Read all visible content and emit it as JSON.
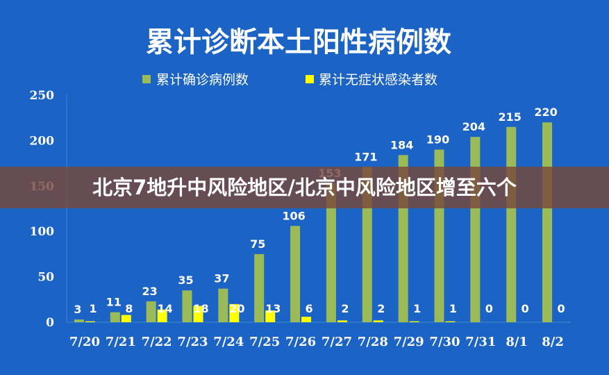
{
  "overlay": {
    "headline": "北京7地升中风险地区/北京中风险地区增至六个"
  },
  "colors": {
    "background": "#1b63c4",
    "confirmed": "#9bbb59",
    "asymptomatic": "#ffff00",
    "grid": "#4a86d4"
  },
  "chart_data": {
    "type": "bar",
    "title": "累计诊断本土阳性病例数",
    "categories": [
      "7/20",
      "7/21",
      "7/22",
      "7/23",
      "7/24",
      "7/25",
      "7/26",
      "7/27",
      "7/28",
      "7/29",
      "7/30",
      "7/31",
      "8/1",
      "8/2"
    ],
    "series": [
      {
        "name": "累计确诊病例数",
        "values": [
          3,
          11,
          23,
          35,
          37,
          75,
          106,
          153,
          171,
          184,
          190,
          204,
          215,
          220
        ]
      },
      {
        "name": "累计无症状感染者数",
        "values": [
          1,
          8,
          14,
          18,
          20,
          13,
          6,
          2,
          2,
          1,
          1,
          0,
          0,
          0
        ]
      }
    ],
    "y_ticks": [
      "0",
      "50",
      "100",
      "150",
      "200",
      "250"
    ],
    "ylim": [
      0,
      250
    ],
    "grid": false,
    "legend": "top-center"
  }
}
